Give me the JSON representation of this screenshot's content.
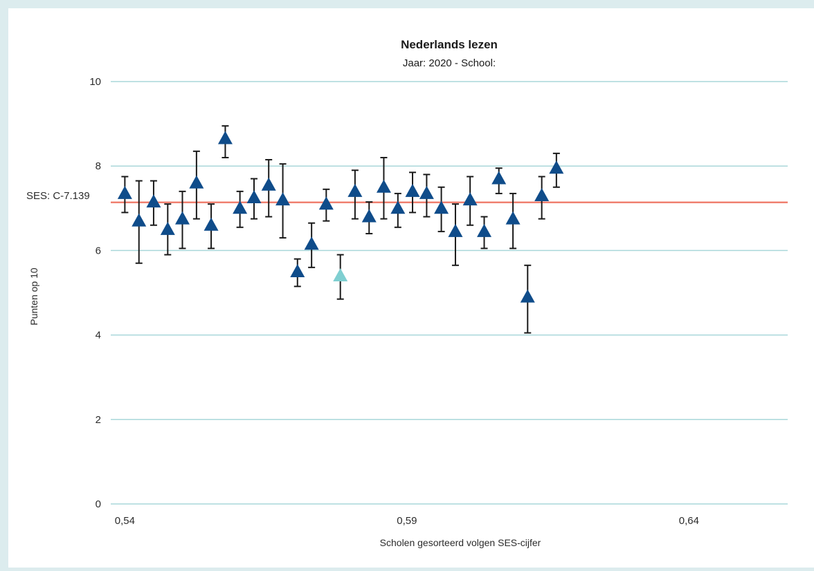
{
  "chart_data": {
    "type": "scatter",
    "title": "Nederlands lezen",
    "subtitle": "Jaar: 2020 - School:",
    "xlabel": "Scholen gesorteerd volgen SES-cijfer",
    "ylabel": "Punten op 10",
    "ylim": [
      0,
      10
    ],
    "xlim": [
      0.5375,
      0.6575
    ],
    "y_ticks": [
      "0",
      "2",
      "4",
      "6",
      "8",
      "10"
    ],
    "x_ticks": [
      {
        "value": 0.54,
        "label": "0,54"
      },
      {
        "value": 0.59,
        "label": "0,59"
      },
      {
        "value": 0.64,
        "label": "0,64"
      }
    ],
    "reference_line": {
      "label": "SES: C-7.139",
      "value": 7.139,
      "color": "#f08070"
    },
    "grid": true,
    "marker_colors": {
      "normal": "#0f4c8a",
      "highlight": "#7fcfd1"
    },
    "points": [
      {
        "x": 0.54,
        "y": 7.35,
        "low": 6.9,
        "high": 7.75
      },
      {
        "x": 0.5425,
        "y": 6.7,
        "low": 5.7,
        "high": 7.65
      },
      {
        "x": 0.5451,
        "y": 7.15,
        "low": 6.6,
        "high": 7.65
      },
      {
        "x": 0.5476,
        "y": 6.5,
        "low": 5.9,
        "high": 7.1
      },
      {
        "x": 0.5502,
        "y": 6.75,
        "low": 6.05,
        "high": 7.4
      },
      {
        "x": 0.5527,
        "y": 7.6,
        "low": 6.75,
        "high": 8.35
      },
      {
        "x": 0.5553,
        "y": 6.6,
        "low": 6.05,
        "high": 7.1
      },
      {
        "x": 0.5578,
        "y": 8.65,
        "low": 8.2,
        "high": 8.95
      },
      {
        "x": 0.5604,
        "y": 7.0,
        "low": 6.55,
        "high": 7.4
      },
      {
        "x": 0.5629,
        "y": 7.25,
        "low": 6.75,
        "high": 7.7
      },
      {
        "x": 0.5655,
        "y": 7.55,
        "low": 6.8,
        "high": 8.15
      },
      {
        "x": 0.568,
        "y": 7.2,
        "low": 6.3,
        "high": 8.05
      },
      {
        "x": 0.5706,
        "y": 5.5,
        "low": 5.15,
        "high": 5.8
      },
      {
        "x": 0.5731,
        "y": 6.15,
        "low": 5.6,
        "high": 6.65
      },
      {
        "x": 0.5757,
        "y": 7.1,
        "low": 6.7,
        "high": 7.45
      },
      {
        "x": 0.5782,
        "y": 5.4,
        "low": 4.85,
        "high": 5.9,
        "highlight": true
      },
      {
        "x": 0.5808,
        "y": 7.4,
        "low": 6.75,
        "high": 7.9
      },
      {
        "x": 0.5833,
        "y": 6.8,
        "low": 6.4,
        "high": 7.15
      },
      {
        "x": 0.5859,
        "y": 7.5,
        "low": 6.75,
        "high": 8.2
      },
      {
        "x": 0.5884,
        "y": 7.0,
        "low": 6.55,
        "high": 7.35
      },
      {
        "x": 0.591,
        "y": 7.4,
        "low": 6.9,
        "high": 7.85
      },
      {
        "x": 0.5935,
        "y": 7.35,
        "low": 6.8,
        "high": 7.8
      },
      {
        "x": 0.5961,
        "y": 7.0,
        "low": 6.45,
        "high": 7.5
      },
      {
        "x": 0.5986,
        "y": 6.45,
        "low": 5.65,
        "high": 7.1
      },
      {
        "x": 0.6012,
        "y": 7.2,
        "low": 6.6,
        "high": 7.75
      },
      {
        "x": 0.6037,
        "y": 6.45,
        "low": 6.05,
        "high": 6.8
      },
      {
        "x": 0.6063,
        "y": 7.7,
        "low": 7.35,
        "high": 7.95
      },
      {
        "x": 0.6088,
        "y": 6.75,
        "low": 6.05,
        "high": 7.35
      },
      {
        "x": 0.6114,
        "y": 4.9,
        "low": 4.05,
        "high": 5.65
      },
      {
        "x": 0.6139,
        "y": 7.3,
        "low": 6.75,
        "high": 7.75
      },
      {
        "x": 0.6165,
        "y": 7.95,
        "low": 7.5,
        "high": 8.3
      }
    ]
  }
}
